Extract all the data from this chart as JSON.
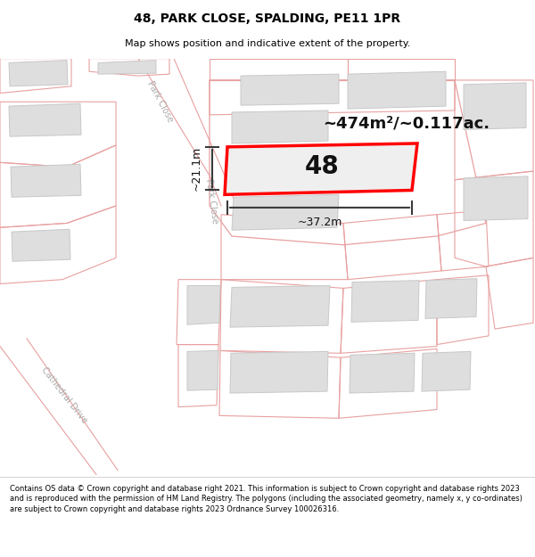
{
  "title": "48, PARK CLOSE, SPALDING, PE11 1PR",
  "subtitle": "Map shows position and indicative extent of the property.",
  "footer": "Contains OS data © Crown copyright and database right 2021. This information is subject to Crown copyright and database rights 2023 and is reproduced with the permission of HM Land Registry. The polygons (including the associated geometry, namely x, y co-ordinates) are subject to Crown copyright and database rights 2023 Ordnance Survey 100026316.",
  "area_text": "~474m²/~0.117ac.",
  "width_text": "~37.2m",
  "height_text": "~21.1m",
  "number_label": "48",
  "road_label_park_close_upper": "Park Close",
  "road_label_park_close_lower": "Park Close",
  "road_label_cathedral": "Cathedral Drive",
  "bg_color": "#f7f7f7",
  "road_fill": "#ffffff",
  "plot_line_color": "#e8a0a0",
  "building_fill": "#dedede",
  "building_edge": "#c8c8c8",
  "highlight_fill": "#efefef",
  "highlight_edge": "#ff0000",
  "dim_line_color": "#3a3a3a",
  "text_color": "#111111",
  "road_text_color": "#aaaaaa",
  "title_fontsize": 10,
  "subtitle_fontsize": 8,
  "footer_fontsize": 6.0,
  "area_fontsize": 13,
  "number_fontsize": 20,
  "dim_fontsize": 9,
  "road_fontsize": 7
}
